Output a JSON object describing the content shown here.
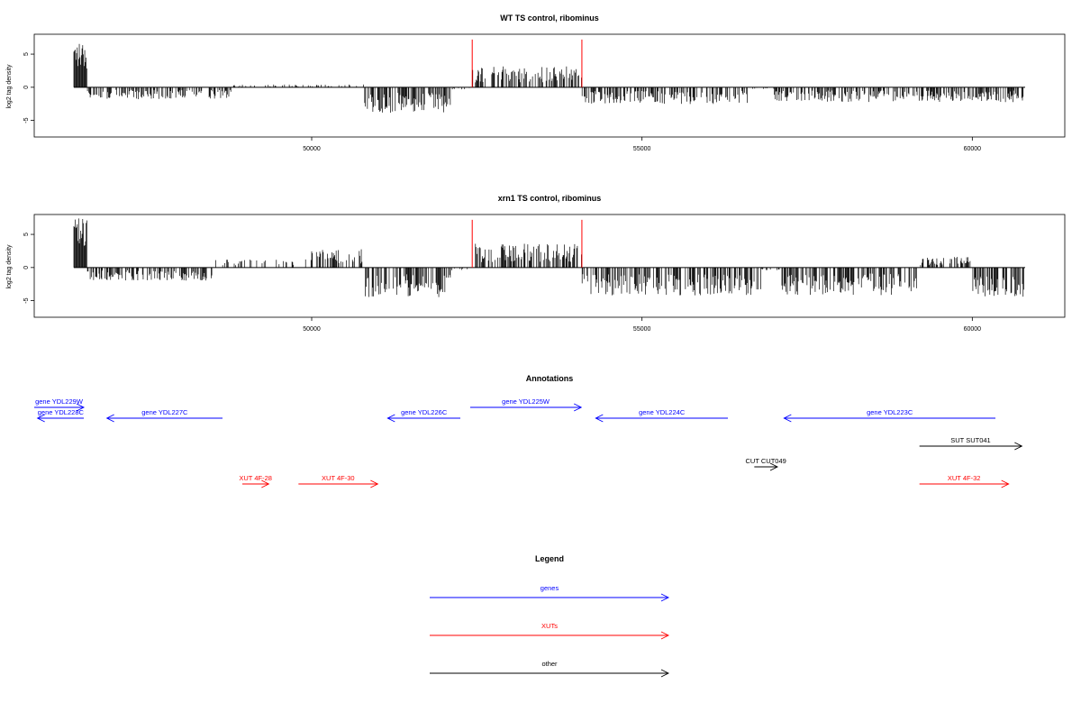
{
  "chart_data": [
    {
      "type": "bar",
      "title": "WT TS control, ribominus",
      "ylabel": "log2 tag density",
      "xlim": [
        45800,
        61400
      ],
      "ylim": [
        -7.5,
        8
      ],
      "x_ticks": [
        50000,
        55000,
        60000
      ],
      "y_ticks": [
        -5,
        0,
        5
      ],
      "grid": false,
      "x_range_data": [
        46400,
        60800
      ],
      "markers": [
        52430,
        54090
      ],
      "profile": [
        {
          "from": 46400,
          "to": 46600,
          "v": 5.5
        },
        {
          "from": 46600,
          "to": 48800,
          "v": -1.3
        },
        {
          "from": 48800,
          "to": 50800,
          "v": 0.3
        },
        {
          "from": 50800,
          "to": 52100,
          "v": -2.8
        },
        {
          "from": 52100,
          "to": 52400,
          "v": -0.3
        },
        {
          "from": 52430,
          "to": 54090,
          "v": 2.3
        },
        {
          "from": 54090,
          "to": 56600,
          "v": -1.8
        },
        {
          "from": 56600,
          "to": 57000,
          "v": -0.2
        },
        {
          "from": 57000,
          "to": 60800,
          "v": -1.6
        }
      ]
    },
    {
      "type": "bar",
      "title": "xrn1 TS control, ribominus",
      "ylabel": "log2 tag density",
      "xlim": [
        45800,
        61400
      ],
      "ylim": [
        -7.5,
        8
      ],
      "x_ticks": [
        50000,
        55000,
        60000
      ],
      "y_ticks": [
        -5,
        0,
        5
      ],
      "grid": false,
      "x_range_data": [
        46400,
        60800
      ],
      "markers": [
        52430,
        54090
      ],
      "profile": [
        {
          "from": 46400,
          "to": 46600,
          "v": 6.0
        },
        {
          "from": 46600,
          "to": 48500,
          "v": -1.4
        },
        {
          "from": 48500,
          "to": 50000,
          "v": 0.9
        },
        {
          "from": 50000,
          "to": 50800,
          "v": 2.0
        },
        {
          "from": 50800,
          "to": 52100,
          "v": -3.2
        },
        {
          "from": 52100,
          "to": 52400,
          "v": -0.3
        },
        {
          "from": 52430,
          "to": 54090,
          "v": 2.6
        },
        {
          "from": 54090,
          "to": 56800,
          "v": -3.0
        },
        {
          "from": 56800,
          "to": 57100,
          "v": -0.3
        },
        {
          "from": 57100,
          "to": 59200,
          "v": -3.0
        },
        {
          "from": 59200,
          "to": 60000,
          "v": 1.2
        },
        {
          "from": 60000,
          "to": 60800,
          "v": -3.2
        }
      ]
    }
  ],
  "annotations": {
    "title": "Annotations",
    "features": [
      {
        "label": "gene YDL229W",
        "start": 45750,
        "end": 46550,
        "strand": "+",
        "type": "gene",
        "row": 0
      },
      {
        "label": "gene YDL228C",
        "start": 45850,
        "end": 46550,
        "strand": "-",
        "type": "gene",
        "row": 1
      },
      {
        "label": "gene YDL227C",
        "start": 46900,
        "end": 48650,
        "strand": "-",
        "type": "gene",
        "row": 1
      },
      {
        "label": "gene YDL226C",
        "start": 51150,
        "end": 52250,
        "strand": "-",
        "type": "gene",
        "row": 1
      },
      {
        "label": "gene YDL225W",
        "start": 52400,
        "end": 54080,
        "strand": "+",
        "type": "gene",
        "row": 0
      },
      {
        "label": "gene YDL224C",
        "start": 54300,
        "end": 56300,
        "strand": "-",
        "type": "gene",
        "row": 1
      },
      {
        "label": "gene YDL223C",
        "start": 57150,
        "end": 60350,
        "strand": "-",
        "type": "gene",
        "row": 1
      },
      {
        "label": "SUT SUT041",
        "start": 59200,
        "end": 60750,
        "strand": "+",
        "type": "other",
        "row": 2
      },
      {
        "label": "CUT CUT049",
        "start": 56700,
        "end": 57050,
        "strand": "+",
        "type": "other",
        "row": 3
      },
      {
        "label": "XUT 4F-28",
        "start": 48950,
        "end": 49350,
        "strand": "+",
        "type": "xut",
        "row": 4
      },
      {
        "label": "XUT 4F-30",
        "start": 49800,
        "end": 51000,
        "strand": "+",
        "type": "xut",
        "row": 4
      },
      {
        "label": "XUT 4F-32",
        "start": 59200,
        "end": 60550,
        "strand": "+",
        "type": "xut",
        "row": 4
      }
    ]
  },
  "legend": {
    "title": "Legend",
    "items": [
      {
        "label": "genes",
        "color": "#0000ff"
      },
      {
        "label": "XUTs",
        "color": "#ff0000"
      },
      {
        "label": "other",
        "color": "#000000"
      }
    ]
  },
  "colors": {
    "gene": "#0000ff",
    "xut": "#ff0000",
    "other": "#000000",
    "marker": "#ff0000",
    "bars": "#000000"
  }
}
